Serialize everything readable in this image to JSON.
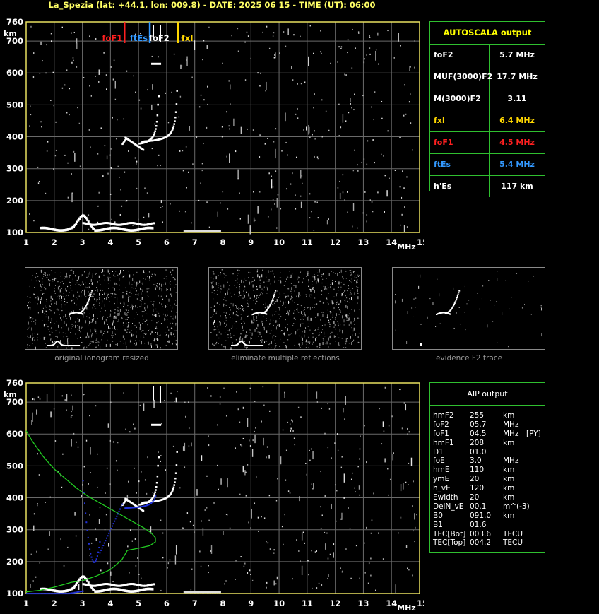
{
  "title": "La_Spezia (lat: +44.1, lon: 009.8) - DATE: 2025 06 15 - TIME (UT): 06:00",
  "colors": {
    "grid": "#6a6a6a",
    "frame": "#e8e060",
    "foF1": "#ff2020",
    "ftEs": "#3399ff",
    "fxI": "#ffd700",
    "table_border": "#2fbf2f",
    "profile_green": "#22cc22",
    "trace_blue": "#2233dd"
  },
  "chart_data": [
    {
      "id": "main-ionogram",
      "type": "scatter",
      "x_ticks": [
        "1",
        "2",
        "3",
        "4",
        "5",
        "6",
        "7",
        "8",
        "9",
        "10",
        "11",
        "12",
        "13",
        "14",
        "15"
      ],
      "y_ticks": [
        "100",
        "200",
        "300",
        "400",
        "500",
        "600",
        "700",
        "760"
      ],
      "xlabel": "MHz",
      "ylabel": "km",
      "xlim": [
        1,
        15
      ],
      "ylim": [
        100,
        760
      ],
      "markers": [
        {
          "label": "foF1",
          "freq": 4.5,
          "color": "#ff2020"
        },
        {
          "label": "ftEs",
          "freq": 5.4,
          "color": "#3399ff"
        },
        {
          "label": "foF2",
          "freq": 5.7,
          "color": "#ffffff"
        },
        {
          "label": "fxI",
          "freq": 6.4,
          "color": "#ffd700"
        }
      ]
    },
    {
      "id": "aip-ionogram",
      "type": "scatter",
      "x_ticks": [
        "1",
        "2",
        "3",
        "4",
        "5",
        "6",
        "7",
        "8",
        "9",
        "10",
        "11",
        "12",
        "13",
        "14",
        "15"
      ],
      "y_ticks": [
        "100",
        "200",
        "300",
        "400",
        "500",
        "600",
        "700",
        "760"
      ],
      "xlabel": "MHz",
      "ylabel": "km",
      "xlim": [
        1,
        15
      ],
      "ylim": [
        100,
        760
      ],
      "profile": {
        "x": [
          1.0,
          1.2,
          1.6,
          2.0,
          2.4,
          2.8,
          3.2,
          3.6,
          4.0,
          4.3,
          4.6,
          4.9,
          5.2,
          5.45,
          5.6,
          5.6,
          5.4,
          5.0,
          4.6,
          4.5,
          4.4,
          4.0,
          3.5,
          3.0,
          2.6,
          2.0,
          1.5,
          1.0
        ],
        "y": [
          610,
          580,
          530,
          490,
          460,
          430,
          405,
          385,
          365,
          350,
          335,
          320,
          305,
          290,
          275,
          262,
          250,
          242,
          235,
          220,
          205,
          175,
          155,
          140,
          135,
          120,
          110,
          105
        ]
      }
    }
  ],
  "captions": {
    "thumb1": "original ionogram resized",
    "thumb2": "eliminate multiple reflections",
    "thumb3": "evidence F2 trace"
  },
  "autoscala": {
    "title": "AUTOSCALA output",
    "rows": [
      {
        "key": "foF2",
        "value": "5.7 MHz",
        "color": "#ffffff"
      },
      {
        "key": "MUF(3000)F2",
        "value": "17.7 MHz",
        "color": "#ffffff"
      },
      {
        "key": "M(3000)F2",
        "value": "3.11",
        "color": "#ffffff"
      },
      {
        "key": "fxI",
        "value": "6.4 MHz",
        "color": "#ffd700"
      },
      {
        "key": "foF1",
        "value": "4.5 MHz",
        "color": "#ff2020"
      },
      {
        "key": "ftEs",
        "value": "5.4 MHz",
        "color": "#3399ff"
      },
      {
        "key": "h'Es",
        "value": "117 km",
        "color": "#ffffff"
      }
    ]
  },
  "aip": {
    "title": "AIP output",
    "rows": [
      {
        "name": "hmF2",
        "value": "255",
        "unit": "km",
        "extra": ""
      },
      {
        "name": "foF2",
        "value": "05.7",
        "unit": "MHz",
        "extra": ""
      },
      {
        "name": "foF1",
        "value": "04.5",
        "unit": "MHz",
        "extra": "[PY]"
      },
      {
        "name": "hmF1",
        "value": "208",
        "unit": "km",
        "extra": ""
      },
      {
        "name": "D1",
        "value": "01.0",
        "unit": "",
        "extra": ""
      },
      {
        "name": "foE",
        "value": "3.0",
        "unit": "MHz",
        "extra": ""
      },
      {
        "name": "hmE",
        "value": "110",
        "unit": "km",
        "extra": ""
      },
      {
        "name": "ymE",
        "value": "20",
        "unit": "km",
        "extra": ""
      },
      {
        "name": "h_vE",
        "value": "120",
        "unit": "km",
        "extra": ""
      },
      {
        "name": "Ewidth",
        "value": "20",
        "unit": "km",
        "extra": ""
      },
      {
        "name": "DelN_vE",
        "value": "00.1",
        "unit": "m^(-3)",
        "extra": ""
      },
      {
        "name": "B0",
        "value": "091.0",
        "unit": "km",
        "extra": ""
      },
      {
        "name": "B1",
        "value": "01.6",
        "unit": "",
        "extra": ""
      },
      {
        "name": "TEC[Bot]",
        "value": "003.6",
        "unit": "TECU",
        "extra": ""
      },
      {
        "name": "TEC[Top]",
        "value": "004.2",
        "unit": "TECU",
        "extra": ""
      }
    ]
  }
}
